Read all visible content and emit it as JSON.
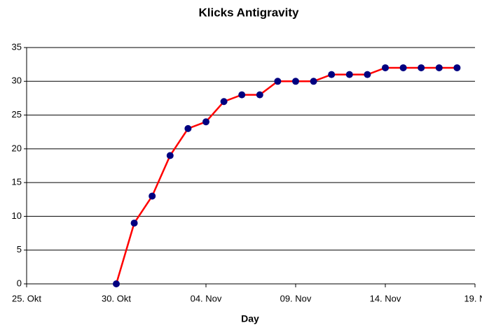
{
  "chart_data": {
    "type": "line",
    "title": "Klicks Antigravity",
    "x_label": "Day",
    "categories": [
      "25. Okt",
      null,
      null,
      null,
      null,
      "30. Okt",
      null,
      null,
      null,
      null,
      "04. Nov",
      null,
      null,
      null,
      null,
      "09. Nov",
      null,
      null,
      null,
      null,
      "14. Nov",
      null,
      null,
      null,
      null,
      "19. N"
    ],
    "series": [
      {
        "color": "#ff0000",
        "marker_color": "#000080",
        "values": [
          null,
          null,
          null,
          null,
          null,
          0,
          9,
          13,
          19,
          23,
          24,
          27,
          28,
          28,
          30,
          30,
          30,
          31,
          31,
          31,
          32,
          32,
          32,
          32,
          32,
          null
        ]
      }
    ],
    "ylim": [
      0,
      35
    ],
    "yticks": [
      0,
      5,
      10,
      15,
      20,
      25,
      30,
      35
    ],
    "grid": true
  }
}
